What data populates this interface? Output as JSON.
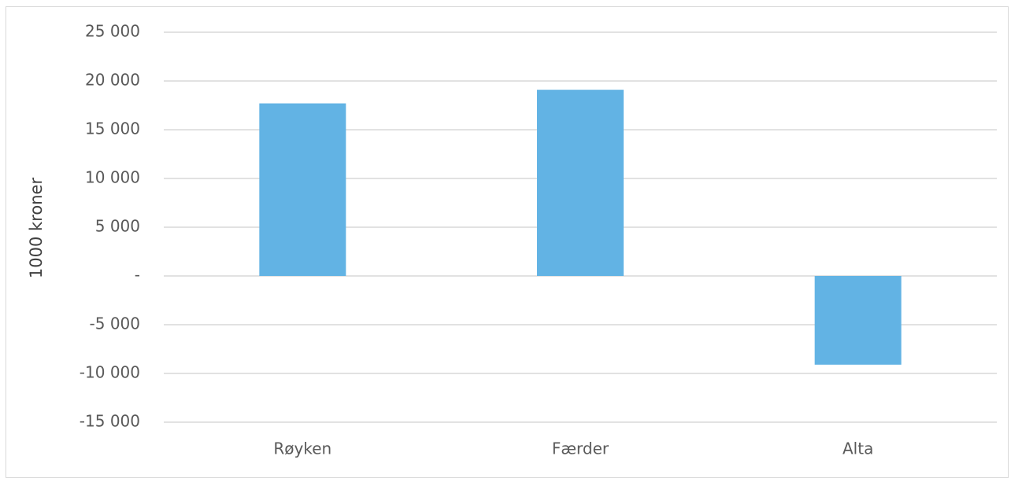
{
  "chart_data": {
    "type": "bar",
    "categories": [
      "Røyken",
      "Færder",
      "Alta"
    ],
    "values": [
      17700,
      19100,
      -9100
    ],
    "ylabel": "1000 kroner",
    "xlabel": "",
    "title": "",
    "ylim": [
      -15000,
      25000
    ],
    "yticks": [
      25000,
      20000,
      15000,
      10000,
      5000,
      0,
      -5000,
      -10000,
      -15000
    ],
    "ytick_labels": [
      "25 000",
      "20 000",
      "15 000",
      "10 000",
      "5 000",
      "-",
      "-5 000",
      "-10 000",
      "-15 000"
    ],
    "grid": true,
    "legend": "none",
    "colors": {
      "bar": "#62b3e4",
      "grid": "#d9d9d9"
    }
  }
}
